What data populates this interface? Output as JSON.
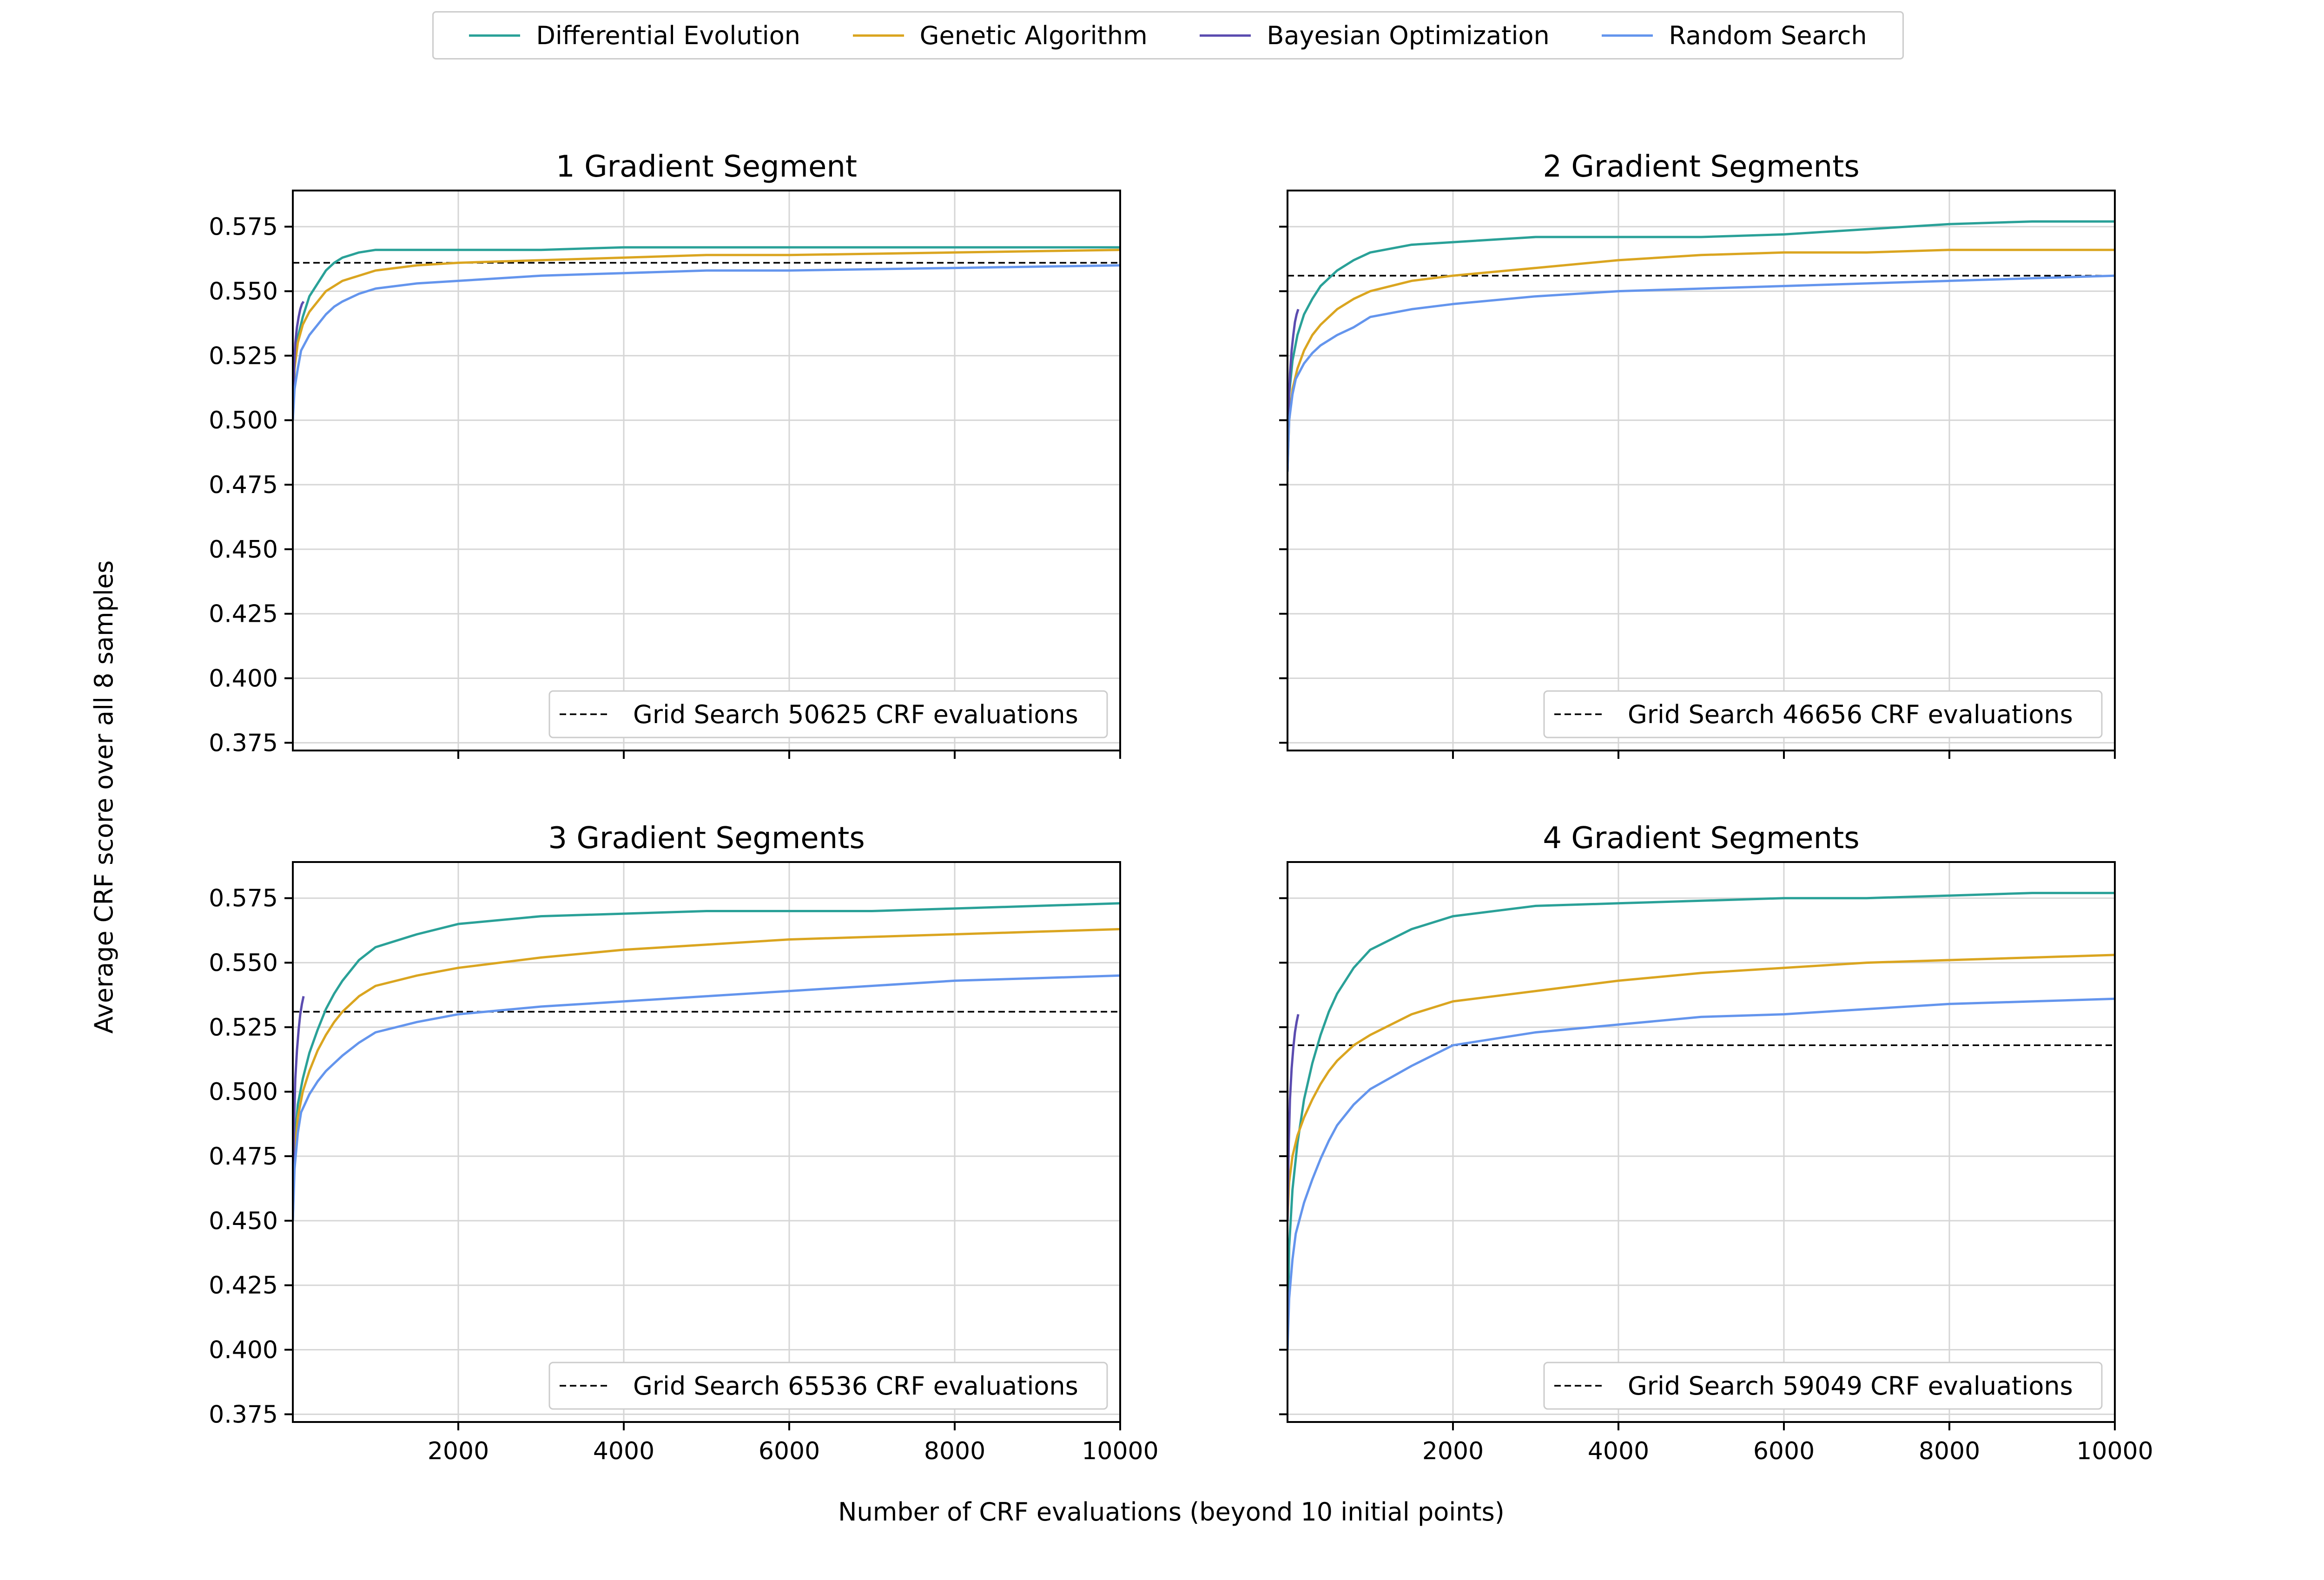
{
  "chart_data": {
    "type": "line",
    "ylabel": "Average CRF score over all 8 samples",
    "xlabel": "Number of CRF evaluations (beyond 10 initial points)",
    "xlim": [
      0,
      10000
    ],
    "ylim": [
      0.372,
      0.589
    ],
    "x_ticks": [
      2000,
      4000,
      6000,
      8000,
      10000
    ],
    "y_ticks": [
      0.375,
      0.4,
      0.425,
      0.45,
      0.475,
      0.5,
      0.525,
      0.55,
      0.575
    ],
    "grid": true,
    "legend": {
      "placement": "top-center",
      "entries": [
        {
          "name": "Differential Evolution",
          "color": "#2aa198"
        },
        {
          "name": "Genetic Algorithm",
          "color": "#daa520"
        },
        {
          "name": "Bayesian Optimization",
          "color": "#5b4cb0"
        },
        {
          "name": "Random Search",
          "color": "#6495ed"
        }
      ]
    },
    "subplots": [
      {
        "title": "1 Gradient Segment",
        "grid_search": {
          "label": "Grid Search 50625 CRF evaluations",
          "value": 0.561
        },
        "series": [
          {
            "name": "Differential Evolution",
            "x": [
              0,
              20,
              60,
              120,
              200,
              300,
              400,
              500,
              600,
              800,
              1000,
              1500,
              2000,
              3000,
              4000,
              5000,
              6000,
              8000,
              10000
            ],
            "y": [
              0.5,
              0.52,
              0.532,
              0.54,
              0.548,
              0.553,
              0.558,
              0.561,
              0.563,
              0.565,
              0.566,
              0.566,
              0.566,
              0.566,
              0.567,
              0.567,
              0.567,
              0.567,
              0.567
            ]
          },
          {
            "name": "Genetic Algorithm",
            "x": [
              0,
              20,
              60,
              120,
              200,
              300,
              400,
              500,
              600,
              800,
              1000,
              1500,
              2000,
              3000,
              4000,
              5000,
              6000,
              8000,
              10000
            ],
            "y": [
              0.5,
              0.52,
              0.53,
              0.537,
              0.542,
              0.546,
              0.55,
              0.552,
              0.554,
              0.556,
              0.558,
              0.56,
              0.561,
              0.562,
              0.563,
              0.564,
              0.564,
              0.565,
              0.566
            ]
          },
          {
            "name": "Bayesian Optimization",
            "x": [
              0,
              15,
              30,
              50,
              70,
              90,
              110,
              130
            ],
            "y": [
              0.5,
              0.52,
              0.53,
              0.536,
              0.54,
              0.543,
              0.545,
              0.546
            ]
          },
          {
            "name": "Random Search",
            "x": [
              0,
              20,
              60,
              100,
              200,
              300,
              400,
              500,
              600,
              800,
              1000,
              1500,
              2000,
              3000,
              4000,
              5000,
              6000,
              8000,
              10000
            ],
            "y": [
              0.5,
              0.512,
              0.52,
              0.527,
              0.533,
              0.537,
              0.541,
              0.544,
              0.546,
              0.549,
              0.551,
              0.553,
              0.554,
              0.556,
              0.557,
              0.558,
              0.558,
              0.559,
              0.56
            ]
          }
        ]
      },
      {
        "title": "2 Gradient Segments",
        "grid_search": {
          "label": "Grid Search 46656 CRF evaluations",
          "value": 0.556
        },
        "series": [
          {
            "name": "Differential Evolution",
            "x": [
              0,
              20,
              60,
              120,
              200,
              300,
              400,
              500,
              600,
              800,
              1000,
              1500,
              2000,
              3000,
              4000,
              5000,
              6000,
              7000,
              8000,
              9000,
              10000
            ],
            "y": [
              0.48,
              0.51,
              0.523,
              0.533,
              0.541,
              0.547,
              0.552,
              0.555,
              0.558,
              0.562,
              0.565,
              0.568,
              0.569,
              0.571,
              0.571,
              0.571,
              0.572,
              0.574,
              0.576,
              0.577,
              0.577
            ]
          },
          {
            "name": "Genetic Algorithm",
            "x": [
              0,
              20,
              60,
              120,
              200,
              300,
              400,
              500,
              600,
              800,
              1000,
              1500,
              2000,
              3000,
              4000,
              5000,
              6000,
              7000,
              8000,
              9000,
              10000
            ],
            "y": [
              0.48,
              0.5,
              0.512,
              0.52,
              0.527,
              0.533,
              0.537,
              0.54,
              0.543,
              0.547,
              0.55,
              0.554,
              0.556,
              0.559,
              0.562,
              0.564,
              0.565,
              0.565,
              0.566,
              0.566,
              0.566
            ]
          },
          {
            "name": "Bayesian Optimization",
            "x": [
              0,
              15,
              30,
              50,
              70,
              90,
              110,
              130
            ],
            "y": [
              0.48,
              0.505,
              0.518,
              0.527,
              0.533,
              0.538,
              0.541,
              0.543
            ]
          },
          {
            "name": "Random Search",
            "x": [
              0,
              20,
              60,
              100,
              200,
              300,
              400,
              500,
              600,
              800,
              1000,
              1500,
              2000,
              3000,
              4000,
              5000,
              6000,
              7000,
              8000,
              9000,
              10000
            ],
            "y": [
              0.48,
              0.5,
              0.51,
              0.516,
              0.522,
              0.526,
              0.529,
              0.531,
              0.533,
              0.536,
              0.54,
              0.543,
              0.545,
              0.548,
              0.55,
              0.551,
              0.552,
              0.553,
              0.554,
              0.555,
              0.556
            ]
          }
        ]
      },
      {
        "title": "3 Gradient Segments",
        "grid_search": {
          "label": "Grid Search 65536 CRF evaluations",
          "value": 0.531
        },
        "series": [
          {
            "name": "Differential Evolution",
            "x": [
              0,
              20,
              60,
              120,
              200,
              300,
              400,
              500,
              600,
              800,
              1000,
              1500,
              2000,
              3000,
              4000,
              5000,
              6000,
              7000,
              8000,
              9000,
              10000
            ],
            "y": [
              0.45,
              0.48,
              0.495,
              0.505,
              0.515,
              0.524,
              0.532,
              0.538,
              0.543,
              0.551,
              0.556,
              0.561,
              0.565,
              0.568,
              0.569,
              0.57,
              0.57,
              0.57,
              0.571,
              0.572,
              0.573
            ]
          },
          {
            "name": "Genetic Algorithm",
            "x": [
              0,
              20,
              60,
              120,
              200,
              300,
              400,
              500,
              600,
              800,
              1000,
              1500,
              2000,
              3000,
              4000,
              5000,
              6000,
              7000,
              8000,
              9000,
              10000
            ],
            "y": [
              0.45,
              0.475,
              0.49,
              0.5,
              0.508,
              0.516,
              0.522,
              0.527,
              0.531,
              0.537,
              0.541,
              0.545,
              0.548,
              0.552,
              0.555,
              0.557,
              0.559,
              0.56,
              0.561,
              0.562,
              0.563
            ]
          },
          {
            "name": "Bayesian Optimization",
            "x": [
              0,
              15,
              30,
              50,
              70,
              90,
              110,
              130
            ],
            "y": [
              0.45,
              0.488,
              0.505,
              0.516,
              0.524,
              0.53,
              0.534,
              0.537
            ]
          },
          {
            "name": "Random Search",
            "x": [
              0,
              20,
              60,
              100,
              200,
              300,
              400,
              500,
              600,
              800,
              1000,
              1500,
              2000,
              3000,
              4000,
              5000,
              6000,
              7000,
              8000,
              9000,
              10000
            ],
            "y": [
              0.45,
              0.47,
              0.484,
              0.492,
              0.499,
              0.504,
              0.508,
              0.511,
              0.514,
              0.519,
              0.523,
              0.527,
              0.53,
              0.533,
              0.535,
              0.537,
              0.539,
              0.541,
              0.543,
              0.544,
              0.545
            ]
          }
        ]
      },
      {
        "title": "4 Gradient Segments",
        "grid_search": {
          "label": "Grid Search 59049 CRF evaluations",
          "value": 0.518
        },
        "series": [
          {
            "name": "Differential Evolution",
            "x": [
              0,
              20,
              60,
              120,
              200,
              300,
              400,
              500,
              600,
              800,
              1000,
              1500,
              2000,
              3000,
              4000,
              5000,
              6000,
              7000,
              8000,
              9000,
              10000
            ],
            "y": [
              0.4,
              0.44,
              0.462,
              0.48,
              0.497,
              0.511,
              0.522,
              0.531,
              0.538,
              0.548,
              0.555,
              0.563,
              0.568,
              0.572,
              0.573,
              0.574,
              0.575,
              0.575,
              0.576,
              0.577,
              0.577
            ]
          },
          {
            "name": "Genetic Algorithm",
            "x": [
              0,
              20,
              60,
              120,
              200,
              300,
              400,
              500,
              600,
              800,
              1000,
              1500,
              2000,
              3000,
              4000,
              5000,
              6000,
              7000,
              8000,
              9000,
              10000
            ],
            "y": [
              0.45,
              0.465,
              0.475,
              0.483,
              0.49,
              0.497,
              0.503,
              0.508,
              0.512,
              0.518,
              0.522,
              0.53,
              0.535,
              0.539,
              0.543,
              0.546,
              0.548,
              0.55,
              0.551,
              0.552,
              0.553
            ]
          },
          {
            "name": "Bayesian Optimization",
            "x": [
              0,
              15,
              30,
              50,
              70,
              90,
              110,
              130
            ],
            "y": [
              0.45,
              0.48,
              0.497,
              0.509,
              0.517,
              0.523,
              0.527,
              0.53
            ]
          },
          {
            "name": "Random Search",
            "x": [
              0,
              20,
              60,
              100,
              200,
              300,
              400,
              500,
              600,
              800,
              1000,
              1500,
              2000,
              3000,
              4000,
              5000,
              6000,
              7000,
              8000,
              9000,
              10000
            ],
            "y": [
              0.4,
              0.42,
              0.435,
              0.445,
              0.457,
              0.466,
              0.474,
              0.481,
              0.487,
              0.495,
              0.501,
              0.51,
              0.518,
              0.523,
              0.526,
              0.529,
              0.53,
              0.532,
              0.534,
              0.535,
              0.536
            ]
          }
        ]
      }
    ]
  }
}
